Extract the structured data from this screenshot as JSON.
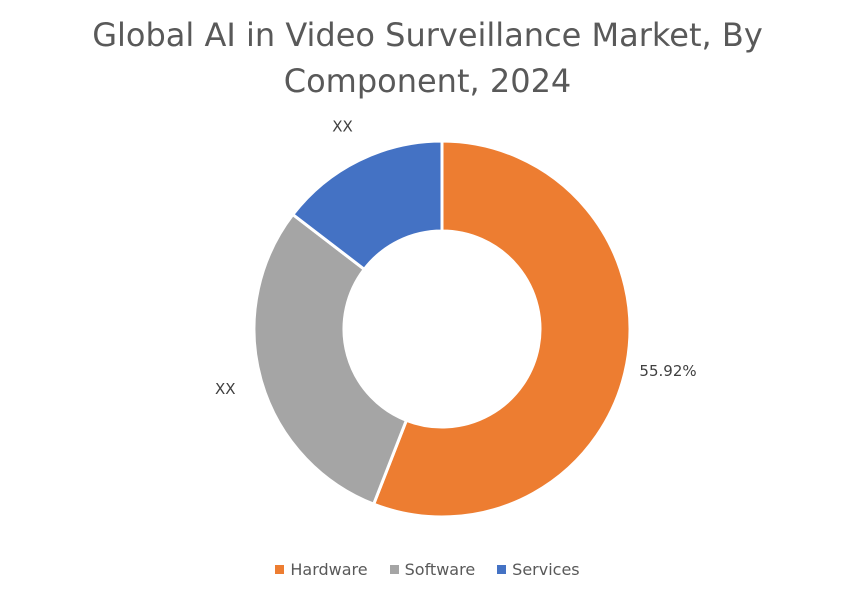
{
  "chart_data": {
    "type": "pie",
    "variant": "donut",
    "title_lines": [
      "Global AI in Video Surveillance Market, By",
      "Component, 2024"
    ],
    "categories": [
      "Hardware",
      "Software",
      "Services"
    ],
    "values": [
      55.92,
      29.5,
      14.58
    ],
    "data_labels": [
      "55.92%",
      "XX",
      "XX"
    ],
    "colors": [
      "#ED7D31",
      "#A5A5A5",
      "#4472C4"
    ],
    "start_angle_deg": 0,
    "direction": "clockwise",
    "legend_position": "bottom"
  }
}
